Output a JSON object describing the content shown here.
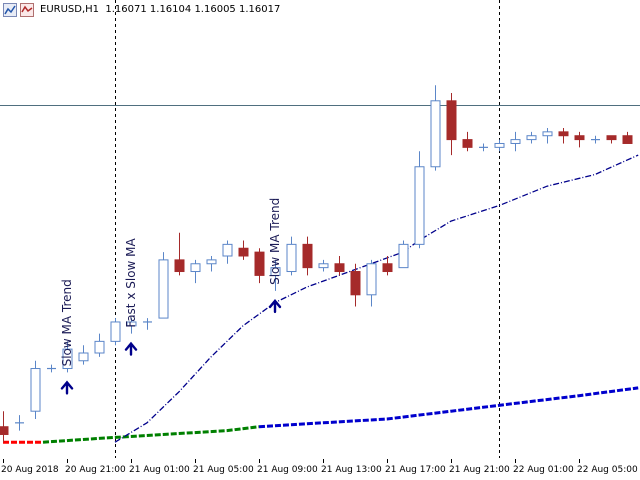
{
  "header": {
    "symbol": "EURUSD,H1",
    "ohlc": "1.16071 1.16104 1.16005 1.16017"
  },
  "colors": {
    "bull_fill": "#ffffff",
    "bull_stroke": "#5b86c8",
    "bear_fill": "#a52a2a",
    "slow_ma_bull": "#008000",
    "slow_ma_bear": "#ff0000",
    "slow_ma_neutral": "#0000cd",
    "fast_ma": "#00008b",
    "grid_line": "#000000",
    "hline": "#4f6f7f",
    "text": "#000000",
    "arrow": "#00008b"
  },
  "annotations": [
    {
      "label": "Slow MA Trend",
      "candle": 4
    },
    {
      "label": "Fast x Slow MA",
      "candle": 8
    },
    {
      "label": "Slow MA Trend",
      "candle": 17
    }
  ],
  "chart_data": {
    "type": "candlestick",
    "symbol": "EURUSD",
    "timeframe": "H1",
    "x_labels": [
      "20 Aug 2018",
      "20 Aug 21:00",
      "21 Aug 01:00",
      "21 Aug 05:00",
      "21 Aug 09:00",
      "21 Aug 13:00",
      "21 Aug 17:00",
      "21 Aug 21:00",
      "22 Aug 01:00",
      "22 Aug 05:00"
    ],
    "x_label_candle_index": [
      0,
      4,
      8,
      12,
      16,
      20,
      24,
      28,
      32,
      36
    ],
    "separator_candle_index": [
      7,
      31
    ],
    "horizontal_line_price": 1.1587,
    "price_range": [
      1.1498,
      1.1598
    ],
    "candles": [
      {
        "o": 1.1504,
        "h": 1.1508,
        "l": 1.15,
        "c": 1.1502
      },
      {
        "o": 1.1505,
        "h": 1.1507,
        "l": 1.1503,
        "c": 1.1505
      },
      {
        "o": 1.1508,
        "h": 1.1521,
        "l": 1.1506,
        "c": 1.1519
      },
      {
        "o": 1.1519,
        "h": 1.152,
        "l": 1.1518,
        "c": 1.1519
      },
      {
        "o": 1.1519,
        "h": 1.1526,
        "l": 1.1518,
        "c": 1.1524
      },
      {
        "o": 1.1521,
        "h": 1.1525,
        "l": 1.152,
        "c": 1.1523
      },
      {
        "o": 1.1523,
        "h": 1.1528,
        "l": 1.1522,
        "c": 1.1526
      },
      {
        "o": 1.1526,
        "h": 1.1532,
        "l": 1.1525,
        "c": 1.1531
      },
      {
        "o": 1.153,
        "h": 1.1532,
        "l": 1.1528,
        "c": 1.1531
      },
      {
        "o": 1.1531,
        "h": 1.1532,
        "l": 1.1529,
        "c": 1.1531
      },
      {
        "o": 1.1532,
        "h": 1.1549,
        "l": 1.1532,
        "c": 1.1547
      },
      {
        "o": 1.1547,
        "h": 1.1554,
        "l": 1.1543,
        "c": 1.1544
      },
      {
        "o": 1.1544,
        "h": 1.1547,
        "l": 1.1541,
        "c": 1.1546
      },
      {
        "o": 1.1546,
        "h": 1.1548,
        "l": 1.1544,
        "c": 1.1547
      },
      {
        "o": 1.1548,
        "h": 1.1552,
        "l": 1.1546,
        "c": 1.1551
      },
      {
        "o": 1.155,
        "h": 1.1552,
        "l": 1.1547,
        "c": 1.1548
      },
      {
        "o": 1.1549,
        "h": 1.155,
        "l": 1.1541,
        "c": 1.1543
      },
      {
        "o": 1.1543,
        "h": 1.1547,
        "l": 1.1539,
        "c": 1.1545
      },
      {
        "o": 1.1544,
        "h": 1.1553,
        "l": 1.1543,
        "c": 1.1551
      },
      {
        "o": 1.1551,
        "h": 1.1553,
        "l": 1.1543,
        "c": 1.1545
      },
      {
        "o": 1.1545,
        "h": 1.1547,
        "l": 1.1544,
        "c": 1.1546
      },
      {
        "o": 1.1546,
        "h": 1.1548,
        "l": 1.1543,
        "c": 1.1544
      },
      {
        "o": 1.1544,
        "h": 1.1546,
        "l": 1.1535,
        "c": 1.1538
      },
      {
        "o": 1.1538,
        "h": 1.1547,
        "l": 1.1535,
        "c": 1.1546
      },
      {
        "o": 1.1546,
        "h": 1.1548,
        "l": 1.1543,
        "c": 1.1544
      },
      {
        "o": 1.1545,
        "h": 1.1552,
        "l": 1.1545,
        "c": 1.1551
      },
      {
        "o": 1.1551,
        "h": 1.1575,
        "l": 1.155,
        "c": 1.1571
      },
      {
        "o": 1.1571,
        "h": 1.1592,
        "l": 1.157,
        "c": 1.1588
      },
      {
        "o": 1.1588,
        "h": 1.159,
        "l": 1.1574,
        "c": 1.1578
      },
      {
        "o": 1.1578,
        "h": 1.158,
        "l": 1.1575,
        "c": 1.1576
      },
      {
        "o": 1.1576,
        "h": 1.1577,
        "l": 1.1575,
        "c": 1.1576
      },
      {
        "o": 1.1576,
        "h": 1.1578,
        "l": 1.1575,
        "c": 1.1577
      },
      {
        "o": 1.1577,
        "h": 1.158,
        "l": 1.1575,
        "c": 1.1578
      },
      {
        "o": 1.1578,
        "h": 1.158,
        "l": 1.1577,
        "c": 1.1579
      },
      {
        "o": 1.1579,
        "h": 1.1581,
        "l": 1.1577,
        "c": 1.158
      },
      {
        "o": 1.158,
        "h": 1.1581,
        "l": 1.1577,
        "c": 1.1579
      },
      {
        "o": 1.1579,
        "h": 1.158,
        "l": 1.1576,
        "c": 1.1578
      },
      {
        "o": 1.1578,
        "h": 1.1579,
        "l": 1.1577,
        "c": 1.1578
      },
      {
        "o": 1.1579,
        "h": 1.1579,
        "l": 1.1577,
        "c": 1.1578
      },
      {
        "o": 1.1579,
        "h": 1.158,
        "l": 1.1577,
        "c": 1.1577
      }
    ],
    "fast_ma": [
      {
        "i": 7,
        "v": 1.15
      },
      {
        "i": 9,
        "v": 1.1505
      },
      {
        "i": 11,
        "v": 1.1513
      },
      {
        "i": 13,
        "v": 1.1522
      },
      {
        "i": 15,
        "v": 1.153
      },
      {
        "i": 17,
        "v": 1.1536
      },
      {
        "i": 19,
        "v": 1.154
      },
      {
        "i": 21,
        "v": 1.1543
      },
      {
        "i": 23,
        "v": 1.1546
      },
      {
        "i": 25,
        "v": 1.1549
      },
      {
        "i": 26,
        "v": 1.1552
      },
      {
        "i": 28,
        "v": 1.1557
      },
      {
        "i": 31,
        "v": 1.1561
      },
      {
        "i": 34,
        "v": 1.1566
      },
      {
        "i": 37,
        "v": 1.1569
      },
      {
        "i": 39.7,
        "v": 1.1574
      }
    ],
    "slow_ma": {
      "segments": [
        {
          "trend": "bear",
          "points": [
            {
              "i": 0,
              "v": 1.15
            },
            {
              "i": 2.5,
              "v": 1.15
            }
          ]
        },
        {
          "trend": "bull",
          "points": [
            {
              "i": 2.5,
              "v": 1.15
            },
            {
              "i": 6,
              "v": 1.1501
            },
            {
              "i": 10,
              "v": 1.1502
            },
            {
              "i": 14,
              "v": 1.1503
            },
            {
              "i": 16,
              "v": 1.1504
            }
          ]
        },
        {
          "trend": "neutral",
          "points": [
            {
              "i": 16,
              "v": 1.1504
            },
            {
              "i": 20,
              "v": 1.1505
            },
            {
              "i": 24,
              "v": 1.1506
            },
            {
              "i": 28,
              "v": 1.1508
            },
            {
              "i": 32,
              "v": 1.151
            },
            {
              "i": 36,
              "v": 1.1512
            },
            {
              "i": 39.7,
              "v": 1.1514
            }
          ]
        }
      ]
    }
  }
}
